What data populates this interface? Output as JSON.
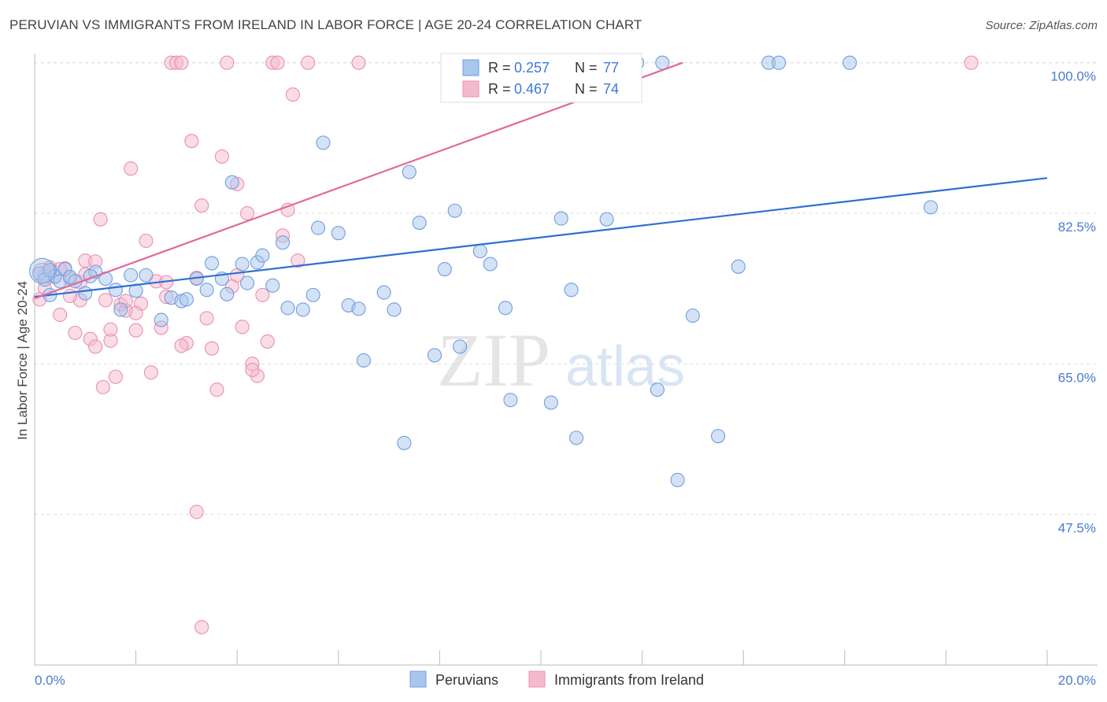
{
  "title": "PERUVIAN VS IMMIGRANTS FROM IRELAND IN LABOR FORCE | AGE 20-24 CORRELATION CHART",
  "source": "Source: ZipAtlas.com",
  "watermark": {
    "zip": "ZIP",
    "atlas": "atlas"
  },
  "colors": {
    "blue_fill": "#a9c6ee",
    "blue_stroke": "#6f9ee0",
    "blue_line": "#2e6fd1",
    "pink_fill": "#f5b9ce",
    "pink_stroke": "#ea8fb0",
    "pink_line": "#e06a96",
    "tick_color": "#4a7bd0",
    "grid": "#dddddd"
  },
  "legend": {
    "r_label": "R =",
    "n_label": "N =",
    "rows": [
      {
        "r": "0.257",
        "n": "77"
      },
      {
        "r": "0.467",
        "n": "74"
      }
    ]
  },
  "bottom_legend": [
    "Peruvians",
    "Immigrants from Ireland"
  ],
  "chart_data": {
    "type": "scatter",
    "ylabel": "In Labor Force | Age 20-24",
    "xlabel": "",
    "xlim": [
      0,
      20
    ],
    "ylim": [
      30,
      102
    ],
    "x_tick_labels": [
      "0.0%",
      "20.0%"
    ],
    "y_ticks": [
      47.5,
      65.0,
      82.5,
      100.0
    ],
    "y_tick_labels": [
      "47.5%",
      "65.0%",
      "82.5%",
      "100.0%"
    ],
    "grid": true,
    "series": [
      {
        "name": "Peruvians",
        "r": 0.257,
        "n": 77,
        "trend": {
          "x0": 0.0,
          "y0": 72.8,
          "x1": 20.0,
          "y1": 86.6
        },
        "points": [
          [
            0.1,
            75.5
          ],
          [
            0.2,
            74.8
          ],
          [
            0.3,
            73.0
          ],
          [
            0.4,
            75.2
          ],
          [
            0.5,
            74.6
          ],
          [
            0.6,
            76.0
          ],
          [
            0.7,
            75.1
          ],
          [
            1.0,
            73.2
          ],
          [
            1.2,
            75.7
          ],
          [
            1.4,
            74.9
          ],
          [
            1.6,
            73.6
          ],
          [
            1.7,
            71.3
          ],
          [
            1.9,
            75.3
          ],
          [
            2.2,
            75.3
          ],
          [
            2.5,
            70.1
          ],
          [
            2.7,
            72.7
          ],
          [
            2.9,
            72.3
          ],
          [
            3.0,
            72.5
          ],
          [
            3.2,
            74.9
          ],
          [
            3.4,
            73.6
          ],
          [
            3.7,
            74.9
          ],
          [
            3.8,
            73.1
          ],
          [
            3.9,
            86.1
          ],
          [
            4.1,
            76.6
          ],
          [
            4.2,
            74.4
          ],
          [
            4.4,
            76.8
          ],
          [
            4.5,
            77.6
          ],
          [
            4.7,
            74.1
          ],
          [
            4.9,
            79.1
          ],
          [
            5.0,
            71.5
          ],
          [
            5.3,
            71.3
          ],
          [
            5.5,
            73.0
          ],
          [
            5.6,
            80.8
          ],
          [
            5.7,
            90.7
          ],
          [
            6.0,
            80.2
          ],
          [
            6.2,
            71.8
          ],
          [
            6.4,
            71.4
          ],
          [
            6.5,
            65.4
          ],
          [
            6.9,
            73.3
          ],
          [
            7.1,
            71.3
          ],
          [
            7.3,
            55.8
          ],
          [
            7.4,
            87.3
          ],
          [
            7.6,
            81.4
          ],
          [
            7.9,
            66.0
          ],
          [
            8.1,
            76.0
          ],
          [
            8.3,
            82.8
          ],
          [
            8.4,
            67.0
          ],
          [
            8.6,
            98.5
          ],
          [
            8.8,
            78.1
          ],
          [
            9.0,
            76.6
          ],
          [
            9.3,
            71.5
          ],
          [
            9.4,
            60.8
          ],
          [
            9.6,
            100.0
          ],
          [
            10.0,
            100.0
          ],
          [
            10.2,
            60.5
          ],
          [
            10.4,
            81.9
          ],
          [
            10.6,
            73.6
          ],
          [
            10.7,
            56.4
          ],
          [
            11.1,
            100.0
          ],
          [
            11.3,
            81.8
          ],
          [
            11.6,
            100.0
          ],
          [
            11.9,
            100.0
          ],
          [
            12.3,
            62.0
          ],
          [
            12.4,
            100.0
          ],
          [
            12.7,
            51.5
          ],
          [
            13.0,
            70.6
          ],
          [
            13.5,
            56.6
          ],
          [
            13.9,
            76.3
          ],
          [
            14.5,
            100.0
          ],
          [
            14.7,
            100.0
          ],
          [
            16.1,
            100.0
          ],
          [
            17.7,
            83.2
          ],
          [
            0.3,
            75.9
          ],
          [
            1.1,
            75.2
          ],
          [
            2.0,
            73.5
          ],
          [
            0.8,
            74.6
          ],
          [
            3.5,
            76.7
          ]
        ]
      },
      {
        "name": "Immigrants from Ireland",
        "r": 0.467,
        "n": 74,
        "trend": {
          "x0": 0.0,
          "y0": 72.6,
          "x1": 12.8,
          "y1": 100.0
        },
        "points": [
          [
            0.1,
            72.5
          ],
          [
            0.2,
            73.8
          ],
          [
            0.3,
            75.9
          ],
          [
            0.4,
            75.1
          ],
          [
            0.5,
            70.7
          ],
          [
            0.6,
            76.1
          ],
          [
            0.7,
            74.9
          ],
          [
            0.8,
            68.6
          ],
          [
            0.9,
            72.4
          ],
          [
            1.0,
            77.0
          ],
          [
            1.1,
            67.9
          ],
          [
            1.2,
            67.0
          ],
          [
            1.3,
            81.8
          ],
          [
            1.35,
            62.3
          ],
          [
            1.4,
            72.4
          ],
          [
            1.5,
            67.7
          ],
          [
            1.6,
            63.5
          ],
          [
            1.7,
            71.9
          ],
          [
            1.8,
            71.2
          ],
          [
            1.9,
            87.7
          ],
          [
            2.0,
            68.9
          ],
          [
            2.1,
            72.0
          ],
          [
            2.2,
            79.3
          ],
          [
            2.3,
            64.0
          ],
          [
            2.4,
            74.6
          ],
          [
            2.5,
            69.2
          ],
          [
            2.6,
            72.8
          ],
          [
            2.7,
            100.0
          ],
          [
            2.8,
            100.0
          ],
          [
            2.9,
            100.0
          ],
          [
            3.0,
            67.4
          ],
          [
            3.1,
            90.9
          ],
          [
            3.2,
            47.8
          ],
          [
            3.3,
            83.4
          ],
          [
            3.4,
            70.3
          ],
          [
            3.5,
            66.8
          ],
          [
            3.6,
            62.0
          ],
          [
            3.7,
            89.1
          ],
          [
            3.8,
            100.0
          ],
          [
            3.9,
            74.0
          ],
          [
            4.0,
            85.9
          ],
          [
            4.1,
            69.3
          ],
          [
            4.2,
            82.5
          ],
          [
            4.3,
            65.0
          ],
          [
            4.4,
            63.6
          ],
          [
            4.5,
            73.0
          ],
          [
            4.6,
            67.6
          ],
          [
            4.7,
            100.0
          ],
          [
            4.8,
            100.0
          ],
          [
            4.9,
            79.9
          ],
          [
            5.0,
            82.9
          ],
          [
            5.1,
            96.3
          ],
          [
            5.2,
            77.0
          ],
          [
            5.4,
            100.0
          ],
          [
            6.4,
            100.0
          ],
          [
            8.6,
            100.0
          ],
          [
            9.9,
            100.0
          ],
          [
            18.5,
            100.0
          ],
          [
            3.3,
            34.4
          ],
          [
            0.5,
            76.0
          ],
          [
            0.9,
            74.5
          ],
          [
            1.2,
            76.9
          ],
          [
            2.0,
            70.9
          ],
          [
            2.6,
            74.5
          ],
          [
            4.0,
            75.3
          ],
          [
            0.3,
            76.2
          ],
          [
            0.7,
            72.9
          ],
          [
            1.0,
            75.4
          ],
          [
            3.2,
            75.0
          ],
          [
            4.3,
            64.3
          ],
          [
            2.9,
            67.1
          ],
          [
            1.8,
            72.3
          ],
          [
            0.2,
            75.3
          ],
          [
            1.5,
            69.0
          ]
        ]
      }
    ]
  }
}
